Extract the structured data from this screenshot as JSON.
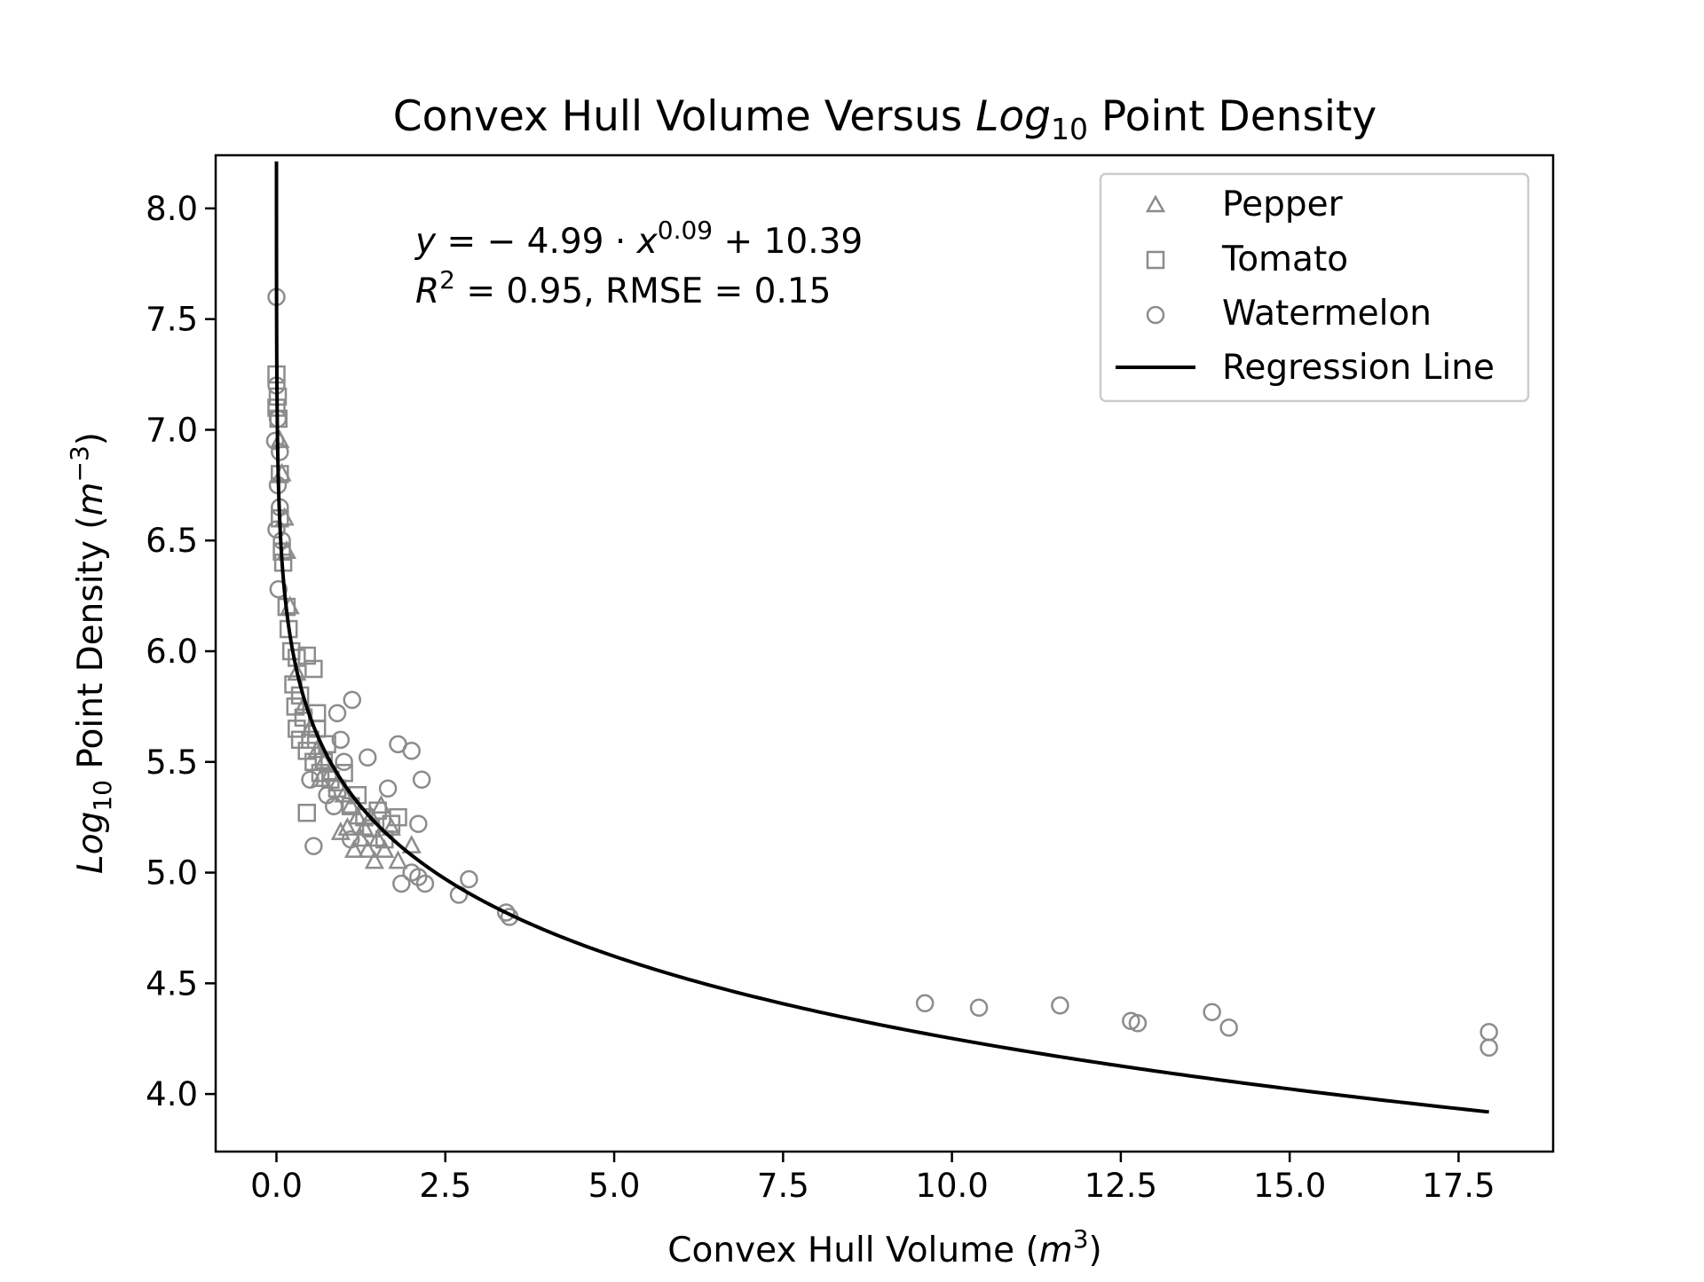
{
  "chart_data": {
    "type": "scatter",
    "title": "Convex Hull Volume Versus",
    "title_italic": "Log",
    "title_sub": "10",
    "title_suffix": " Point Density",
    "xlabel": "Convex Hull Volume (",
    "xlabel_italic": "m",
    "xlabel_sup": "3",
    "xlabel_suffix": ")",
    "ylabel_italic": "Log",
    "ylabel_sub": "10",
    "ylabel": " Point Density (",
    "ylabel_italic2": "m",
    "ylabel_sup": "−3",
    "ylabel_suffix": ")",
    "xlim": [
      -0.9,
      18.9
    ],
    "ylim": [
      3.74,
      8.24
    ],
    "x_ticks": [
      0.0,
      2.5,
      5.0,
      7.5,
      10.0,
      12.5,
      15.0,
      17.5
    ],
    "x_tick_labels": [
      "0.0",
      "2.5",
      "5.0",
      "7.5",
      "10.0",
      "12.5",
      "15.0",
      "17.5"
    ],
    "y_ticks": [
      4.0,
      4.5,
      5.0,
      5.5,
      6.0,
      6.5,
      7.0,
      7.5,
      8.0
    ],
    "y_tick_labels": [
      "4.0",
      "4.5",
      "5.0",
      "5.5",
      "6.0",
      "6.5",
      "7.0",
      "7.5",
      "8.0"
    ],
    "grid": false,
    "legend_position": "top-right",
    "annotation": {
      "equation_y": "y",
      "equation_mid": " = − 4.99 · ",
      "equation_x": "x",
      "equation_exp": "0.09",
      "equation_tail": " + 10.39",
      "r2_R": "R",
      "r2_sup": "2",
      "r2_tail": " = 0.95, RMSE = 0.15"
    },
    "regression": {
      "name": "Regression Line",
      "a": -4.99,
      "b": 0.09,
      "c": 10.39,
      "x_range": [
        0.0001,
        17.95
      ],
      "color": "#000000"
    },
    "series": [
      {
        "name": "Pepper",
        "marker": "triangle",
        "color": "#8c8c8c",
        "points": [
          [
            0.05,
            6.95
          ],
          [
            0.08,
            6.8
          ],
          [
            0.12,
            6.6
          ],
          [
            0.15,
            6.45
          ],
          [
            0.2,
            6.2
          ],
          [
            0.3,
            5.9
          ],
          [
            0.4,
            5.75
          ],
          [
            0.5,
            5.65
          ],
          [
            0.6,
            5.55
          ],
          [
            0.7,
            5.5
          ],
          [
            0.8,
            5.45
          ],
          [
            0.9,
            5.4
          ],
          [
            1.0,
            5.35
          ],
          [
            1.05,
            5.2
          ],
          [
            1.1,
            5.3
          ],
          [
            1.2,
            5.25
          ],
          [
            1.25,
            5.15
          ],
          [
            1.3,
            5.2
          ],
          [
            1.35,
            5.1
          ],
          [
            1.4,
            5.25
          ],
          [
            1.45,
            5.05
          ],
          [
            1.5,
            5.15
          ],
          [
            1.55,
            5.3
          ],
          [
            1.6,
            5.1
          ],
          [
            1.7,
            5.2
          ],
          [
            1.8,
            5.05
          ],
          [
            2.0,
            5.12
          ],
          [
            0.95,
            5.18
          ],
          [
            1.15,
            5.1
          ],
          [
            0.65,
            5.42
          ]
        ]
      },
      {
        "name": "Tomato",
        "marker": "square",
        "color": "#8c8c8c",
        "points": [
          [
            0.0,
            7.25
          ],
          [
            0.02,
            7.15
          ],
          [
            0.0,
            7.1
          ],
          [
            0.03,
            7.05
          ],
          [
            0.05,
            6.8
          ],
          [
            0.05,
            6.6
          ],
          [
            0.08,
            6.45
          ],
          [
            0.1,
            6.4
          ],
          [
            0.15,
            6.2
          ],
          [
            0.18,
            6.1
          ],
          [
            0.22,
            6.0
          ],
          [
            0.3,
            5.97
          ],
          [
            0.45,
            5.98
          ],
          [
            0.55,
            5.92
          ],
          [
            0.25,
            5.85
          ],
          [
            0.28,
            5.75
          ],
          [
            0.3,
            5.65
          ],
          [
            0.35,
            5.6
          ],
          [
            0.4,
            5.7
          ],
          [
            0.45,
            5.55
          ],
          [
            0.5,
            5.6
          ],
          [
            0.55,
            5.5
          ],
          [
            0.6,
            5.65
          ],
          [
            0.65,
            5.45
          ],
          [
            0.7,
            5.5
          ],
          [
            0.8,
            5.42
          ],
          [
            0.9,
            5.38
          ],
          [
            1.0,
            5.45
          ],
          [
            1.1,
            5.3
          ],
          [
            1.2,
            5.35
          ],
          [
            1.3,
            5.25
          ],
          [
            1.4,
            5.2
          ],
          [
            1.5,
            5.28
          ],
          [
            1.6,
            5.15
          ],
          [
            1.7,
            5.22
          ],
          [
            1.8,
            5.25
          ],
          [
            0.45,
            5.27
          ],
          [
            0.75,
            5.58
          ],
          [
            0.35,
            5.8
          ],
          [
            0.6,
            5.72
          ]
        ]
      },
      {
        "name": "Watermelon",
        "marker": "circle",
        "color": "#8c8c8c",
        "points": [
          [
            0.0,
            7.6
          ],
          [
            0.0,
            7.2
          ],
          [
            0.02,
            7.05
          ],
          [
            -0.02,
            6.95
          ],
          [
            0.05,
            6.9
          ],
          [
            0.02,
            6.75
          ],
          [
            0.05,
            6.65
          ],
          [
            0.0,
            6.55
          ],
          [
            0.08,
            6.5
          ],
          [
            0.03,
            6.28
          ],
          [
            1.12,
            5.78
          ],
          [
            0.9,
            5.72
          ],
          [
            0.95,
            5.6
          ],
          [
            1.0,
            5.5
          ],
          [
            1.35,
            5.52
          ],
          [
            1.8,
            5.58
          ],
          [
            2.0,
            5.55
          ],
          [
            2.15,
            5.42
          ],
          [
            1.65,
            5.38
          ],
          [
            2.1,
            5.22
          ],
          [
            0.55,
            5.12
          ],
          [
            0.5,
            5.42
          ],
          [
            0.75,
            5.35
          ],
          [
            0.85,
            5.3
          ],
          [
            1.1,
            5.15
          ],
          [
            2.0,
            5.0
          ],
          [
            2.1,
            4.98
          ],
          [
            1.85,
            4.95
          ],
          [
            2.2,
            4.95
          ],
          [
            2.7,
            4.9
          ],
          [
            2.85,
            4.97
          ],
          [
            3.4,
            4.82
          ],
          [
            3.45,
            4.8
          ],
          [
            9.6,
            4.41
          ],
          [
            10.4,
            4.39
          ],
          [
            11.6,
            4.4
          ],
          [
            12.65,
            4.33
          ],
          [
            12.75,
            4.32
          ],
          [
            13.85,
            4.37
          ],
          [
            14.1,
            4.3
          ],
          [
            17.95,
            4.28
          ],
          [
            17.95,
            4.21
          ]
        ]
      }
    ]
  }
}
